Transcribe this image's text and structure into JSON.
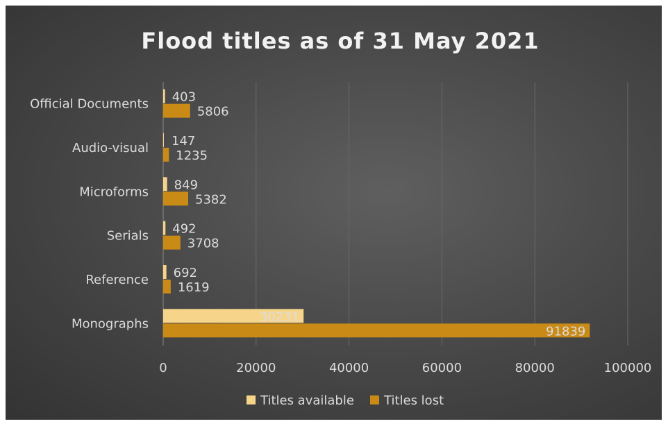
{
  "chart_data": {
    "type": "bar",
    "orientation": "horizontal",
    "title": "Flood titles as of 31 May 2021",
    "categories": [
      "Official Documents",
      "Audio-visual",
      "Microforms",
      "Serials",
      "Reference",
      "Monographs"
    ],
    "series": [
      {
        "name": "Titles available",
        "values": [
          403,
          147,
          849,
          492,
          692,
          30231
        ],
        "color": "#f6d58b"
      },
      {
        "name": "Titles lost",
        "values": [
          5806,
          1235,
          5382,
          3708,
          1619,
          91839
        ],
        "color": "#c98a16"
      }
    ],
    "xlim": [
      0,
      100000
    ],
    "xticks": [
      "0",
      "20000",
      "40000",
      "60000",
      "80000",
      "100000"
    ],
    "grid": true,
    "legend": "bottom",
    "colors": {
      "background": "#4a4a4a",
      "text": "#dcdcdc",
      "grid": "#6a6a6a"
    }
  }
}
